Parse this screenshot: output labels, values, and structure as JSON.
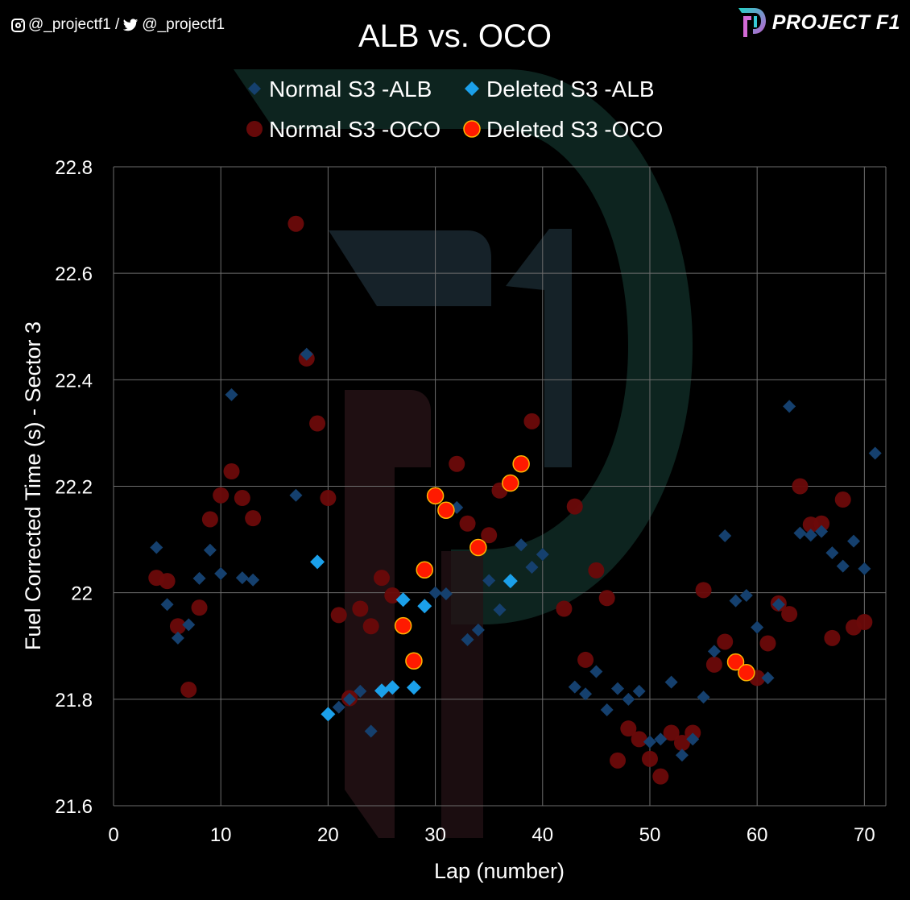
{
  "header": {
    "social_handles": "@_projectf1 / ",
    "social_handle2": "@_projectf1",
    "brand": "PROJECT F1",
    "instagram_icon": "instagram-icon",
    "twitter_icon": "twitter-icon",
    "logo_icon": "project-f1-logo-icon"
  },
  "colors": {
    "alb_normal": "#15406e",
    "alb_deleted": "#1ba0ea",
    "oco_normal": "#6b0a0a",
    "oco_deleted": "#ff1a00",
    "oco_deleted_stroke": "#ffb400",
    "grid": "#6d6d6d"
  },
  "chart_data": {
    "type": "scatter",
    "title": "ALB vs. OCO",
    "xlabel": "Lap (number)",
    "ylabel": "Fuel Corrected Time (s) - Sector 3",
    "xlim": [
      0,
      72
    ],
    "ylim": [
      21.6,
      22.8
    ],
    "xticks": [
      0,
      10,
      20,
      30,
      40,
      50,
      60,
      70
    ],
    "yticks": [
      21.6,
      21.8,
      22.0,
      22.2,
      22.4,
      22.6,
      22.8
    ],
    "ytick_labels": [
      "21.6",
      "21.8",
      "22",
      "22.2",
      "22.4",
      "22.6",
      "22.8"
    ],
    "grid": true,
    "legend_position": "top",
    "series": [
      {
        "name": "Normal S3 -ALB",
        "marker": "diamond",
        "x": [
          4,
          5,
          6,
          7,
          8,
          9,
          10,
          11,
          12,
          13,
          17,
          18,
          21,
          22,
          23,
          24,
          30,
          31,
          32,
          33,
          34,
          35,
          36,
          38,
          39,
          40,
          43,
          44,
          45,
          46,
          47,
          48,
          49,
          50,
          51,
          52,
          53,
          54,
          55,
          56,
          57,
          58,
          59,
          60,
          61,
          62,
          63,
          64,
          65,
          66,
          67,
          68,
          69,
          70,
          71
        ],
        "y": [
          22.085,
          21.978,
          21.915,
          21.94,
          22.027,
          22.08,
          22.036,
          22.372,
          22.028,
          22.024,
          22.183,
          22.448,
          21.785,
          21.8,
          21.815,
          21.74,
          22.0,
          21.998,
          22.16,
          21.912,
          21.93,
          22.023,
          21.968,
          22.09,
          22.048,
          22.072,
          21.823,
          21.81,
          21.852,
          21.78,
          21.82,
          21.8,
          21.815,
          21.72,
          21.725,
          21.832,
          21.695,
          21.725,
          21.804,
          21.89,
          22.107,
          21.985,
          21.995,
          21.935,
          21.84,
          21.978,
          22.35,
          22.112,
          22.108,
          22.115,
          22.075,
          22.05,
          22.097,
          22.045,
          22.262
        ]
      },
      {
        "name": "Deleted S3 -ALB",
        "marker": "diamond",
        "x": [
          19,
          20,
          25,
          26,
          27,
          28,
          29,
          37
        ],
        "y": [
          22.058,
          21.772,
          21.816,
          21.822,
          21.987,
          21.822,
          21.975,
          22.022
        ]
      },
      {
        "name": "Normal S3 -OCO",
        "marker": "circle",
        "x": [
          4,
          5,
          6,
          7,
          8,
          9,
          10,
          11,
          12,
          13,
          17,
          18,
          19,
          20,
          21,
          22,
          23,
          24,
          25,
          26,
          32,
          33,
          35,
          36,
          39,
          42,
          43,
          44,
          45,
          46,
          47,
          48,
          49,
          50,
          51,
          52,
          53,
          54,
          55,
          56,
          57,
          60,
          61,
          62,
          63,
          64,
          65,
          66,
          67,
          68,
          69,
          70
        ],
        "y": [
          22.028,
          22.022,
          21.937,
          21.818,
          21.972,
          22.138,
          22.183,
          22.228,
          22.178,
          22.14,
          22.693,
          22.44,
          22.318,
          22.178,
          21.958,
          21.802,
          21.97,
          21.937,
          22.028,
          21.995,
          22.242,
          22.13,
          22.108,
          22.192,
          22.322,
          21.97,
          22.162,
          21.874,
          22.042,
          21.99,
          21.685,
          21.745,
          21.725,
          21.688,
          21.655,
          21.737,
          21.718,
          21.737,
          22.005,
          21.865,
          21.908,
          21.84,
          21.905,
          21.98,
          21.96,
          22.2,
          22.128,
          22.13,
          21.915,
          22.175,
          21.935,
          21.945
        ]
      },
      {
        "name": "Deleted S3 -OCO",
        "marker": "circle",
        "x": [
          27,
          28,
          29,
          30,
          31,
          34,
          37,
          38,
          58,
          59
        ],
        "y": [
          21.938,
          21.872,
          22.043,
          22.182,
          22.155,
          22.085,
          22.206,
          22.242,
          21.87,
          21.85
        ]
      }
    ]
  }
}
